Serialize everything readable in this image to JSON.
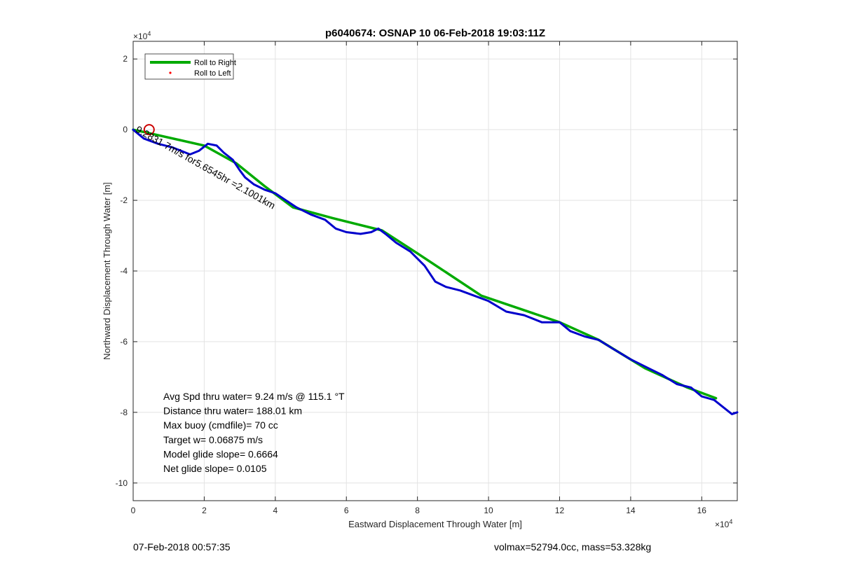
{
  "chart_data": {
    "type": "line",
    "title": "p6040674: OSNAP 10 06-Feb-2018 19:03:11Z",
    "xlabel": "Eastward Displacement Through Water [m]",
    "ylabel": "Northward Displacement Through Water [m]",
    "x_exponent_label": "×10",
    "x_exponent_power": "4",
    "y_exponent_label": "×10",
    "y_exponent_power": "4",
    "xlim": [
      0,
      17
    ],
    "ylim": [
      -10.5,
      2.5
    ],
    "x_ticks": [
      0,
      2,
      4,
      6,
      8,
      10,
      12,
      14,
      16
    ],
    "x_tick_labels": [
      "0",
      "2",
      "4",
      "6",
      "8",
      "10",
      "12",
      "14",
      "16"
    ],
    "y_ticks": [
      2,
      0,
      -2,
      -4,
      -6,
      -8,
      -10
    ],
    "y_tick_labels": [
      "2",
      "0",
      "-2",
      "-4",
      "-6",
      "-8",
      "-10"
    ],
    "grid": true,
    "legend_position": "top-left",
    "series": [
      {
        "name": "Roll to Right",
        "color": "#00aa00",
        "style": "line",
        "x": [
          0,
          0.45,
          2.0,
          2.9,
          3.7,
          4.5,
          5.6,
          7.0,
          8.0,
          9.8,
          12.0,
          13.1,
          14.4,
          15.6,
          16.4
        ],
        "y": [
          0,
          -0.1,
          -0.45,
          -0.95,
          -1.6,
          -2.2,
          -2.5,
          -2.85,
          -3.5,
          -4.7,
          -5.45,
          -5.95,
          -6.75,
          -7.3,
          -7.6
        ]
      },
      {
        "name": "Roll to Left",
        "color": "#ff0000",
        "style": "marker",
        "x": [],
        "y": []
      },
      {
        "name": "",
        "color": "#0000cc",
        "style": "line",
        "x": [
          0,
          0.3,
          0.7,
          1.1,
          1.6,
          1.85,
          2.1,
          2.35,
          2.55,
          2.8,
          3.0,
          3.15,
          3.4,
          3.7,
          4.0,
          4.3,
          4.6,
          5.0,
          5.4,
          5.7,
          6.0,
          6.4,
          6.7,
          6.9,
          7.1,
          7.4,
          7.8,
          8.2,
          8.5,
          8.8,
          9.2,
          9.6,
          10.0,
          10.5,
          11.0,
          11.5,
          12.0,
          12.3,
          12.7,
          13.1,
          13.5,
          14.0,
          14.5,
          14.9,
          15.3,
          15.7,
          16.0,
          16.35,
          16.6,
          16.85,
          17.0
        ],
        "y": [
          0,
          -0.25,
          -0.4,
          -0.5,
          -0.7,
          -0.6,
          -0.4,
          -0.45,
          -0.65,
          -0.85,
          -1.15,
          -1.35,
          -1.55,
          -1.7,
          -1.8,
          -2.0,
          -2.2,
          -2.4,
          -2.55,
          -2.8,
          -2.9,
          -2.95,
          -2.9,
          -2.8,
          -2.95,
          -3.2,
          -3.45,
          -3.85,
          -4.3,
          -4.45,
          -4.55,
          -4.7,
          -4.85,
          -5.15,
          -5.25,
          -5.45,
          -5.45,
          -5.7,
          -5.85,
          -5.95,
          -6.2,
          -6.5,
          -6.75,
          -6.95,
          -7.2,
          -7.3,
          -7.55,
          -7.65,
          -7.85,
          -8.05,
          -8.0
        ]
      }
    ],
    "start_marker": {
      "x": 0.45,
      "y": 0.0,
      "color": "#cc0000"
    },
    "track_label": {
      "text": "9.2831 7m/s for5.6545hr =2.1001km",
      "x": 0.05,
      "y": -0.05,
      "angle_deg": 29.5
    },
    "stats": [
      "Avg Spd thru water=  9.24 m/s @ 115.1 °T",
      "Distance thru water= 188.01 km",
      "Max buoy (cmdfile)= 70 cc",
      "Target w= 0.06875 m/s",
      "Model glide slope= 0.6664",
      "Net glide slope= 0.0105"
    ]
  },
  "footer": {
    "left": "07-Feb-2018 00:57:35",
    "right": "volmax=52794.0cc, mass=53.328kg"
  }
}
